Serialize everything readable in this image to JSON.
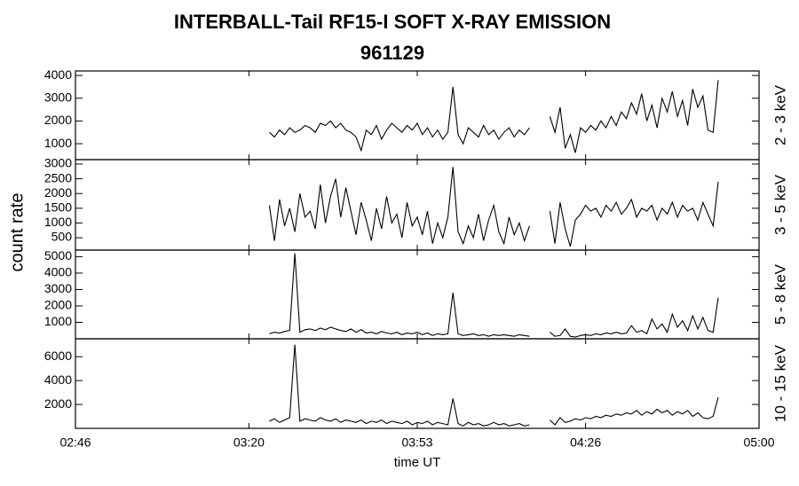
{
  "chart_data": {
    "type": "line",
    "title": "INTERBALL-Tail RF15-I SOFT X-RAY EMISSION",
    "subtitle": "961129",
    "x_label": "time UT",
    "y_label": "count rate",
    "xlim": [
      "02:46",
      "05:00"
    ],
    "xticks": [
      "02:46",
      "03:20",
      "03:53",
      "04:26",
      "05:00"
    ],
    "x": [
      "03:24",
      "03:25",
      "03:26",
      "03:27",
      "03:28",
      "03:29",
      "03:30",
      "03:31",
      "03:32",
      "03:33",
      "03:34",
      "03:35",
      "03:36",
      "03:37",
      "03:38",
      "03:39",
      "03:40",
      "03:41",
      "03:42",
      "03:43",
      "03:44",
      "03:45",
      "03:46",
      "03:47",
      "03:48",
      "03:49",
      "03:50",
      "03:51",
      "03:52",
      "03:53",
      "03:54",
      "03:55",
      "03:56",
      "03:57",
      "03:58",
      "03:59",
      "04:00",
      "04:01",
      "04:02",
      "04:03",
      "04:04",
      "04:05",
      "04:06",
      "04:07",
      "04:08",
      "04:09",
      "04:10",
      "04:11",
      "04:12",
      "04:13",
      "04:14",
      "04:15",
      "04:17",
      "04:19",
      "04:20",
      "04:21",
      "04:22",
      "04:23",
      "04:24",
      "04:25",
      "04:26",
      "04:27",
      "04:28",
      "04:29",
      "04:30",
      "04:31",
      "04:32",
      "04:33",
      "04:34",
      "04:35",
      "04:36",
      "04:37",
      "04:38",
      "04:39",
      "04:40",
      "04:41",
      "04:42",
      "04:43",
      "04:44",
      "04:45",
      "04:46",
      "04:47",
      "04:48",
      "04:49",
      "04:50",
      "04:51",
      "04:52"
    ],
    "series": [
      {
        "name": "2 - 3 keV",
        "color": "#000000",
        "ylim": [
          300,
          4200
        ],
        "yticks": [
          1000,
          2000,
          3000,
          4000
        ],
        "values": [
          1500,
          1300,
          1600,
          1400,
          1700,
          1500,
          1600,
          1800,
          1700,
          1500,
          1900,
          1800,
          2000,
          1700,
          1900,
          1600,
          1500,
          1300,
          700,
          1600,
          1400,
          1800,
          1200,
          1600,
          1900,
          1700,
          1500,
          1800,
          1600,
          1900,
          1400,
          1700,
          1300,
          1600,
          1200,
          1500,
          3500,
          1400,
          1000,
          1700,
          1500,
          1300,
          1800,
          1400,
          1600,
          1200,
          1500,
          1700,
          1300,
          1600,
          1400,
          1700,
          null,
          2200,
          1500,
          2600,
          800,
          1400,
          600,
          1700,
          1500,
          1800,
          1600,
          2000,
          1700,
          2200,
          1800,
          2400,
          2100,
          2800,
          2300,
          3200,
          2000,
          2700,
          1700,
          3000,
          2400,
          3300,
          2200,
          2900,
          1800,
          3400,
          2600,
          3100,
          1600,
          1500,
          3800
        ]
      },
      {
        "name": "3 - 5 keV",
        "color": "#000000",
        "ylim": [
          80,
          3150
        ],
        "yticks": [
          500,
          1000,
          1500,
          2000,
          2500,
          3000
        ],
        "values": [
          1600,
          400,
          1800,
          900,
          1500,
          700,
          2000,
          1200,
          1400,
          800,
          2300,
          1000,
          1900,
          2500,
          1200,
          2200,
          1400,
          600,
          1700,
          1100,
          400,
          1500,
          800,
          1900,
          1000,
          1300,
          500,
          1700,
          900,
          1200,
          600,
          1400,
          300,
          1000,
          500,
          1200,
          2900,
          700,
          300,
          900,
          500,
          1300,
          400,
          1100,
          1600,
          700,
          300,
          1200,
          600,
          1000,
          400,
          900,
          null,
          1400,
          300,
          1700,
          800,
          200,
          1100,
          1300,
          1600,
          1400,
          1500,
          1200,
          1600,
          1400,
          1700,
          1300,
          1500,
          1800,
          1200,
          1500,
          1400,
          1600,
          1100,
          1500,
          1300,
          1700,
          1200,
          1600,
          1400,
          1500,
          1100,
          1700,
          1300,
          900,
          2400
        ]
      },
      {
        "name": "5 - 8 keV",
        "color": "#000000",
        "ylim": [
          0,
          5400
        ],
        "yticks": [
          1000,
          2000,
          3000,
          4000,
          5000
        ],
        "values": [
          300,
          400,
          350,
          450,
          500,
          5200,
          400,
          550,
          600,
          500,
          650,
          550,
          700,
          600,
          500,
          450,
          600,
          400,
          550,
          350,
          400,
          300,
          450,
          350,
          300,
          400,
          250,
          350,
          300,
          400,
          250,
          350,
          200,
          300,
          250,
          300,
          2800,
          300,
          200,
          250,
          300,
          200,
          250,
          150,
          250,
          200,
          250,
          200,
          150,
          250,
          200,
          150,
          null,
          400,
          150,
          200,
          600,
          150,
          100,
          200,
          250,
          200,
          300,
          250,
          350,
          300,
          400,
          300,
          350,
          800,
          400,
          500,
          300,
          1200,
          600,
          900,
          400,
          1500,
          700,
          1100,
          500,
          1400,
          600,
          1300,
          500,
          400,
          2500
        ]
      },
      {
        "name": "10 - 15 keV",
        "color": "#000000",
        "ylim": [
          0,
          7500
        ],
        "yticks": [
          2000,
          4000,
          6000
        ],
        "values": [
          600,
          800,
          500,
          700,
          900,
          7000,
          600,
          800,
          700,
          600,
          900,
          700,
          600,
          800,
          500,
          700,
          600,
          500,
          700,
          400,
          600,
          500,
          700,
          400,
          600,
          500,
          400,
          600,
          300,
          500,
          400,
          600,
          300,
          500,
          400,
          300,
          2500,
          400,
          200,
          500,
          300,
          400,
          200,
          300,
          500,
          300,
          400,
          200,
          300,
          400,
          200,
          300,
          null,
          700,
          300,
          900,
          500,
          600,
          800,
          700,
          900,
          800,
          1000,
          900,
          1100,
          1000,
          1200,
          1100,
          1300,
          1200,
          1500,
          1100,
          1400,
          1200,
          1600,
          1300,
          1500,
          1100,
          1400,
          1200,
          1500,
          1000,
          1300,
          900,
          800,
          1000,
          2600
        ]
      }
    ]
  }
}
